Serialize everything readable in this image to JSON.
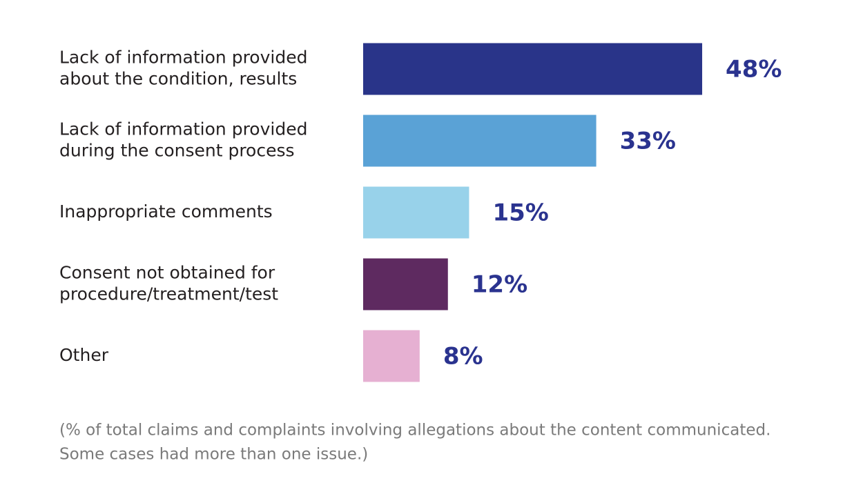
{
  "chart_data": {
    "type": "bar",
    "orientation": "horizontal",
    "categories": [
      [
        "Lack of information provided",
        "about the condition, results"
      ],
      [
        "Lack of information provided",
        "during the consent process"
      ],
      [
        "Inappropriate comments"
      ],
      [
        "Consent not obtained for",
        "procedure/treatment/test"
      ],
      [
        "Other"
      ]
    ],
    "values": [
      48,
      33,
      15,
      12,
      8
    ],
    "value_labels": [
      "48%",
      "33%",
      "15%",
      "12%",
      "8%"
    ],
    "colors": [
      "#293489",
      "#5aa2d6",
      "#98d2ea",
      "#5e2a60",
      "#e6b0d2"
    ],
    "note": [
      "(% of total claims and complaints involving allegations about the content communicated.",
      "Some cases had more than one issue.)"
    ]
  }
}
